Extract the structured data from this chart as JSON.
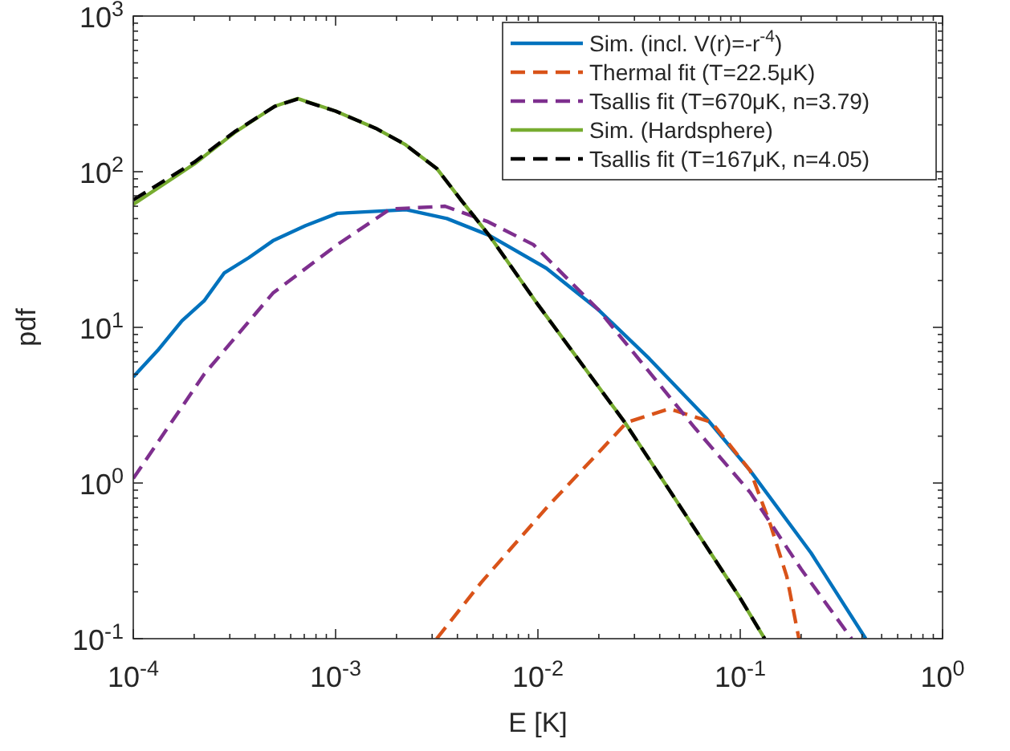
{
  "chart_data": {
    "type": "line",
    "xlabel": "E [K]",
    "ylabel": "pdf",
    "log": "xy",
    "legend": "top right",
    "grid": false,
    "xlim": [
      0.0001,
      1
    ],
    "ylim": [
      0.1,
      1000
    ],
    "xticks": [
      {
        "value": 0.0001,
        "label": "10$^{-4}$"
      },
      {
        "value": 0.001,
        "label": "10$^{-3}$"
      },
      {
        "value": 0.01,
        "label": "10$^{-2}$"
      },
      {
        "value": 0.1,
        "label": "10$^{-1}$"
      },
      {
        "value": 1,
        "label": "10$^{0}$"
      }
    ],
    "yticks": [
      {
        "value": 0.1,
        "label": "10$^{-1}$"
      },
      {
        "value": 1,
        "label": "10$^{0}$"
      },
      {
        "value": 10,
        "label": "10$^{1}$"
      },
      {
        "value": 100,
        "label": "10$^{2}$"
      },
      {
        "value": 1000,
        "label": "10$^{3}$"
      }
    ],
    "series": [
      {
        "name": "Sim. (incl. V(r)=-r$^{-4}$)",
        "color": "#0072bd",
        "line_style": "solid",
        "x": [
          0.0001,
          0.000132,
          0.000174,
          0.000224,
          0.000282,
          0.000372,
          0.00049,
          0.00071,
          0.00102,
          0.00224,
          0.00355,
          0.00575,
          0.011,
          0.02,
          0.0355,
          0.0676,
          0.112,
          0.224,
          0.417
        ],
        "values": [
          4.8,
          7.1,
          11,
          14.8,
          22.4,
          28,
          36,
          45,
          54,
          57,
          50,
          39,
          24,
          12.9,
          6.3,
          2.63,
          1.2,
          0.355,
          0.1
        ]
      },
      {
        "name": "Thermal fit (T=22.5μK)",
        "color": "#d95319",
        "line_style": "dashed",
        "x": [
          0.00316,
          0.00525,
          0.011,
          0.0275,
          0.0447,
          0.0724,
          0.112,
          0.141,
          0.17,
          0.195
        ],
        "values": [
          0.1,
          0.23,
          0.69,
          2.45,
          3.0,
          2.45,
          1.2,
          0.54,
          0.25,
          0.1
        ]
      },
      {
        "name": "Tsallis fit (T=670μK, n=3.79)",
        "color": "#7e2f8e",
        "line_style": "dashed",
        "x": [
          0.0001,
          0.000224,
          0.00049,
          0.00102,
          0.00186,
          0.00347,
          0.0056,
          0.0095,
          0.02,
          0.06,
          0.112,
          0.2,
          0.355
        ],
        "values": [
          1.07,
          5.0,
          16.6,
          34,
          57.5,
          60,
          48,
          34,
          12.9,
          2.24,
          0.87,
          0.28,
          0.1
        ]
      },
      {
        "name": "Sim. (Hardsphere)",
        "color": "#77ac30",
        "line_style": "solid",
        "x": [
          0.0001,
          0.0002,
          0.000316,
          0.0005,
          0.00065,
          0.001,
          0.00158,
          0.0022,
          0.00316,
          0.0042,
          0.00575,
          0.01,
          0.0269,
          0.05,
          0.1,
          0.132
        ],
        "values": [
          61.7,
          112,
          178,
          263,
          295,
          245,
          190,
          150,
          105,
          65,
          38.9,
          14,
          2.45,
          0.72,
          0.182,
          0.1
        ]
      },
      {
        "name": "Tsallis fit (T=167μK, n=4.05)",
        "color": "#000000",
        "line_style": "dashed",
        "x": [
          0.0001,
          0.0002,
          0.000316,
          0.0005,
          0.00065,
          0.001,
          0.00158,
          0.0022,
          0.00316,
          0.0042,
          0.00575,
          0.01,
          0.0269,
          0.05,
          0.1,
          0.132
        ],
        "values": [
          66,
          115,
          180,
          263,
          293,
          245,
          190,
          150,
          105,
          65,
          38.9,
          14,
          2.45,
          0.72,
          0.182,
          0.1
        ]
      }
    ]
  }
}
